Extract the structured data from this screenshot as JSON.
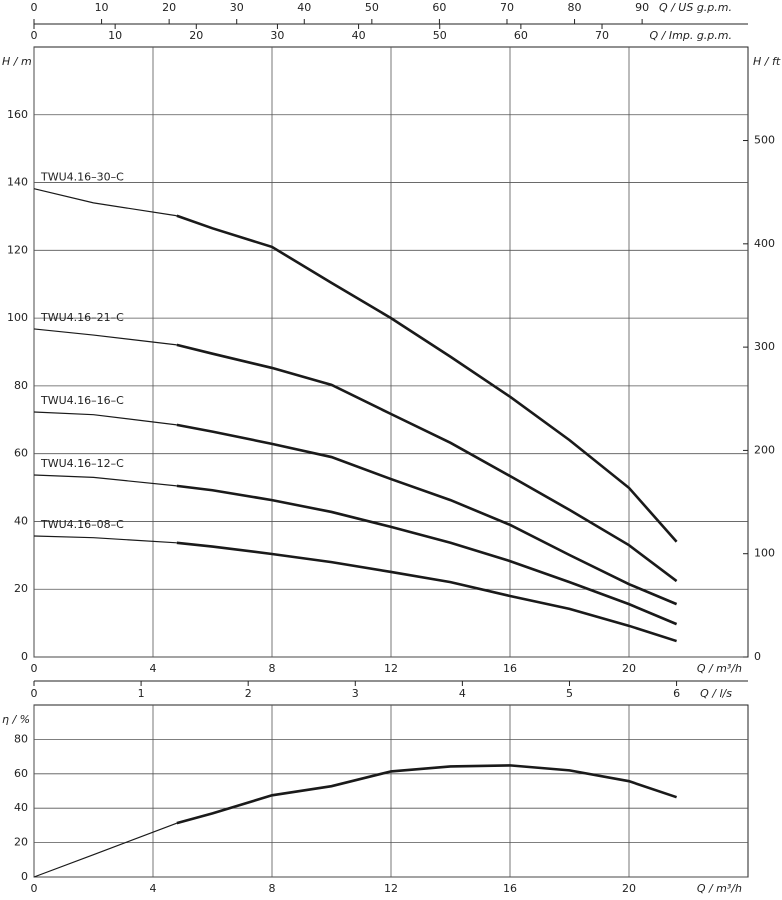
{
  "chart_data": [
    {
      "type": "line",
      "x": [
        0,
        2,
        4.8,
        6,
        8,
        10,
        12,
        14,
        16,
        18,
        20,
        21.6
      ],
      "series": [
        {
          "name": "TWU4.16–30–C",
          "color": "#1a1a1a",
          "values": [
            138.2,
            134,
            130.2,
            126.5,
            121,
            110.4,
            100,
            88.6,
            76.8,
            64,
            49.9,
            34
          ]
        },
        {
          "name": "TWU4.16–21–C",
          "color": "#1a1a1a",
          "values": [
            96.8,
            95,
            92.1,
            89.5,
            85.3,
            80.3,
            71.7,
            63.2,
            53.4,
            43.4,
            33,
            22.4
          ]
        },
        {
          "name": "TWU4.16–16–C",
          "color": "#1a1a1a",
          "values": [
            72.3,
            71.5,
            68.5,
            66.5,
            62.9,
            59,
            52.5,
            46.3,
            39,
            30.1,
            21.5,
            15.6
          ]
        },
        {
          "name": "TWU4.16–12–C",
          "color": "#1a1a1a",
          "values": [
            53.7,
            53,
            50.5,
            49.2,
            46.3,
            42.8,
            38.4,
            33.7,
            28.3,
            22.1,
            15.6,
            9.7
          ]
        },
        {
          "name": "TWU4.16–08–C",
          "color": "#1a1a1a",
          "values": [
            35.7,
            35.2,
            33.7,
            32.6,
            30.4,
            28,
            25.1,
            22.1,
            18,
            14.2,
            9.2,
            4.7
          ]
        }
      ],
      "xlim": [
        0,
        24
      ],
      "xticks": [
        0,
        4,
        8,
        12,
        16,
        20
      ],
      "x_label": "Q / m³/h",
      "ylim": [
        0,
        180
      ],
      "yticks": [
        0,
        20,
        40,
        60,
        80,
        100,
        120,
        140,
        160
      ],
      "y_label": "H / m",
      "y2lim": [
        0,
        590.55
      ],
      "y2ticks": [
        0,
        100,
        200,
        300,
        400,
        500
      ],
      "y2_label": "H / ft",
      "x2lim": [
        0,
        105.67
      ],
      "x2ticks": [
        0,
        10,
        20,
        30,
        40,
        50,
        60,
        70,
        80,
        90
      ],
      "x2_label": "Q / US g.p.m.",
      "x3lim": [
        0,
        87.99
      ],
      "x3ticks": [
        0,
        10,
        20,
        30,
        40,
        50,
        60,
        70
      ],
      "x3_label": "Q / Imp. g.p.m.",
      "grid": true
    },
    {
      "type": "line",
      "x": [
        0,
        2,
        4.8,
        6,
        8,
        10,
        12,
        14,
        16,
        18,
        20,
        21.6
      ],
      "series": [
        {
          "color": "#1a1a1a",
          "values": [
            0,
            13,
            31.3,
            37,
            47.5,
            52.8,
            61.4,
            64.3,
            64.9,
            62,
            55.7,
            46.4
          ]
        }
      ],
      "xlim": [
        0,
        24
      ],
      "xticks": [
        0,
        4,
        8,
        12,
        16,
        20
      ],
      "x_label": "Q / m³/h",
      "ylim": [
        0,
        100
      ],
      "yticks": [
        0,
        20,
        40,
        60,
        80
      ],
      "y_label": "η / %",
      "x2lim": [
        0,
        6.667
      ],
      "x2ticks": [
        0,
        1,
        2,
        3,
        4,
        5,
        6
      ],
      "x2_label": "Q / l/s",
      "grid": true
    }
  ]
}
